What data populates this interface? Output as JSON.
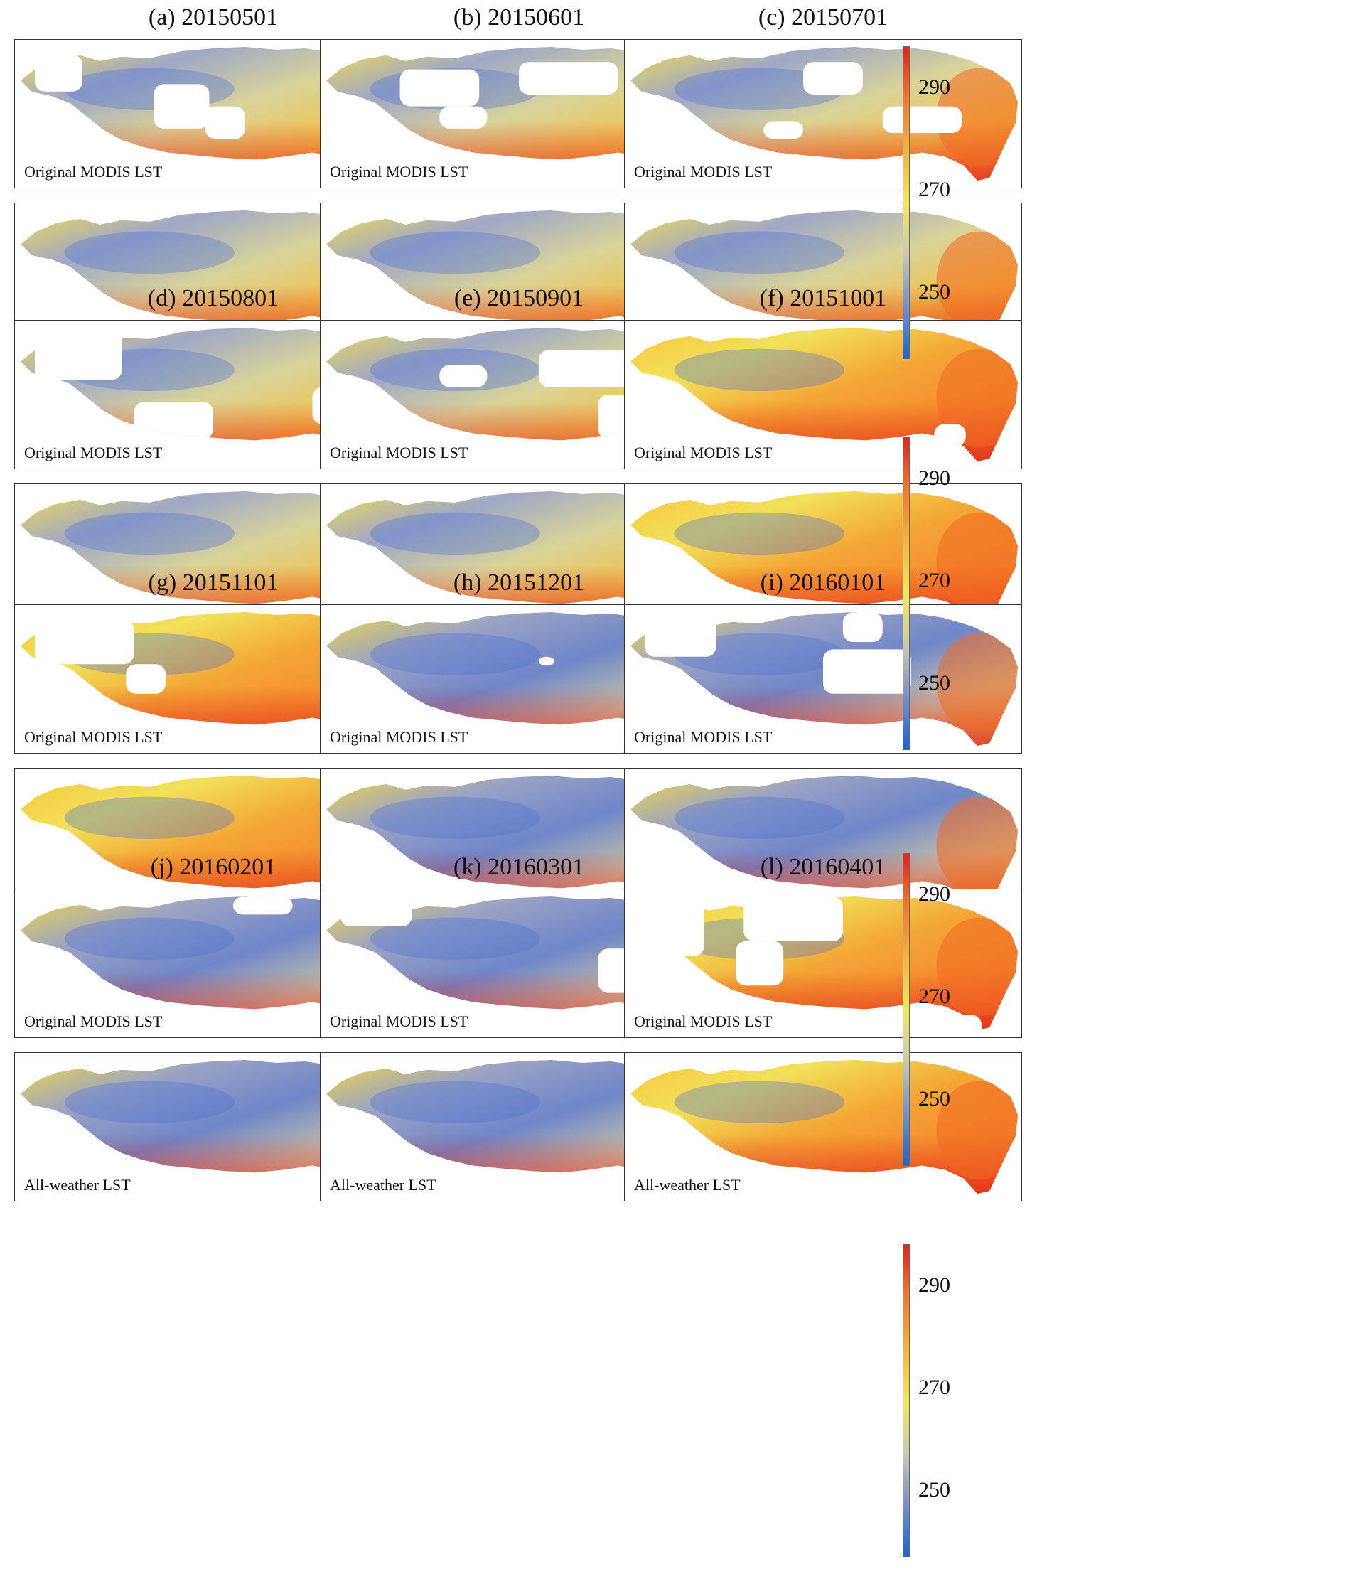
{
  "figure": {
    "map_labels": {
      "original": "Original MODIS LST",
      "allweather": "All-weather LST"
    },
    "colorbar": {
      "ticks": [
        "290",
        "270",
        "250"
      ],
      "tick_values": [
        290,
        270,
        250
      ],
      "range": [
        237,
        298
      ],
      "colors": [
        "#1565d8",
        "#7a8fc4",
        "#c9c9b0",
        "#f2ea5a",
        "#f5b23c",
        "#f07a2e",
        "#e2231a"
      ]
    },
    "panels": [
      {
        "title": "(a) 20150501",
        "gaps": [
          [
            0.35,
            0.3,
            0.14,
            0.3
          ],
          [
            0.48,
            0.45,
            0.1,
            0.22
          ],
          [
            0.05,
            0.1,
            0.12,
            0.25
          ]
        ]
      },
      {
        "title": "(b) 20150601",
        "gaps": [
          [
            0.2,
            0.2,
            0.2,
            0.25
          ],
          [
            0.5,
            0.15,
            0.25,
            0.22
          ],
          [
            0.3,
            0.45,
            0.12,
            0.15
          ]
        ]
      },
      {
        "title": "(c) 20150701",
        "gaps": [
          [
            0.45,
            0.15,
            0.15,
            0.22
          ],
          [
            0.65,
            0.45,
            0.2,
            0.18
          ],
          [
            0.35,
            0.55,
            0.1,
            0.12
          ]
        ]
      },
      {
        "title": "(d) 20150801",
        "gaps": [
          [
            0.05,
            0.05,
            0.22,
            0.35
          ],
          [
            0.3,
            0.55,
            0.2,
            0.25
          ],
          [
            0.75,
            0.45,
            0.15,
            0.25
          ]
        ]
      },
      {
        "title": "(e) 20150901",
        "gaps": [
          [
            0.55,
            0.2,
            0.25,
            0.25
          ],
          [
            0.7,
            0.5,
            0.2,
            0.3
          ],
          [
            0.3,
            0.3,
            0.12,
            0.15
          ]
        ]
      },
      {
        "title": "(f) 20151001",
        "gaps": [
          [
            0.78,
            0.7,
            0.08,
            0.15
          ]
        ]
      },
      {
        "title": "(g) 20151101",
        "gaps": [
          [
            0.05,
            0.1,
            0.25,
            0.3
          ],
          [
            0.28,
            0.4,
            0.1,
            0.2
          ]
        ]
      },
      {
        "title": "(h) 20151201",
        "gaps": [
          [
            0.55,
            0.35,
            0.04,
            0.06
          ]
        ]
      },
      {
        "title": "(i) 20160101",
        "gaps": [
          [
            0.05,
            0.05,
            0.18,
            0.3
          ],
          [
            0.5,
            0.3,
            0.22,
            0.3
          ],
          [
            0.55,
            0.05,
            0.1,
            0.2
          ]
        ]
      },
      {
        "title": "(j) 20160201",
        "gaps": [
          [
            0.55,
            0.05,
            0.15,
            0.12
          ],
          [
            0.85,
            0.75,
            0.1,
            0.15
          ]
        ]
      },
      {
        "title": "(k) 20160301",
        "gaps": [
          [
            0.05,
            0.05,
            0.18,
            0.2
          ],
          [
            0.7,
            0.4,
            0.25,
            0.3
          ]
        ]
      },
      {
        "title": "(l) 20160401",
        "gaps": [
          [
            0.0,
            0.0,
            0.2,
            0.45
          ],
          [
            0.3,
            0.05,
            0.25,
            0.3
          ],
          [
            0.28,
            0.35,
            0.12,
            0.3
          ],
          [
            0.45,
            0.85,
            0.45,
            0.15
          ]
        ]
      }
    ]
  }
}
